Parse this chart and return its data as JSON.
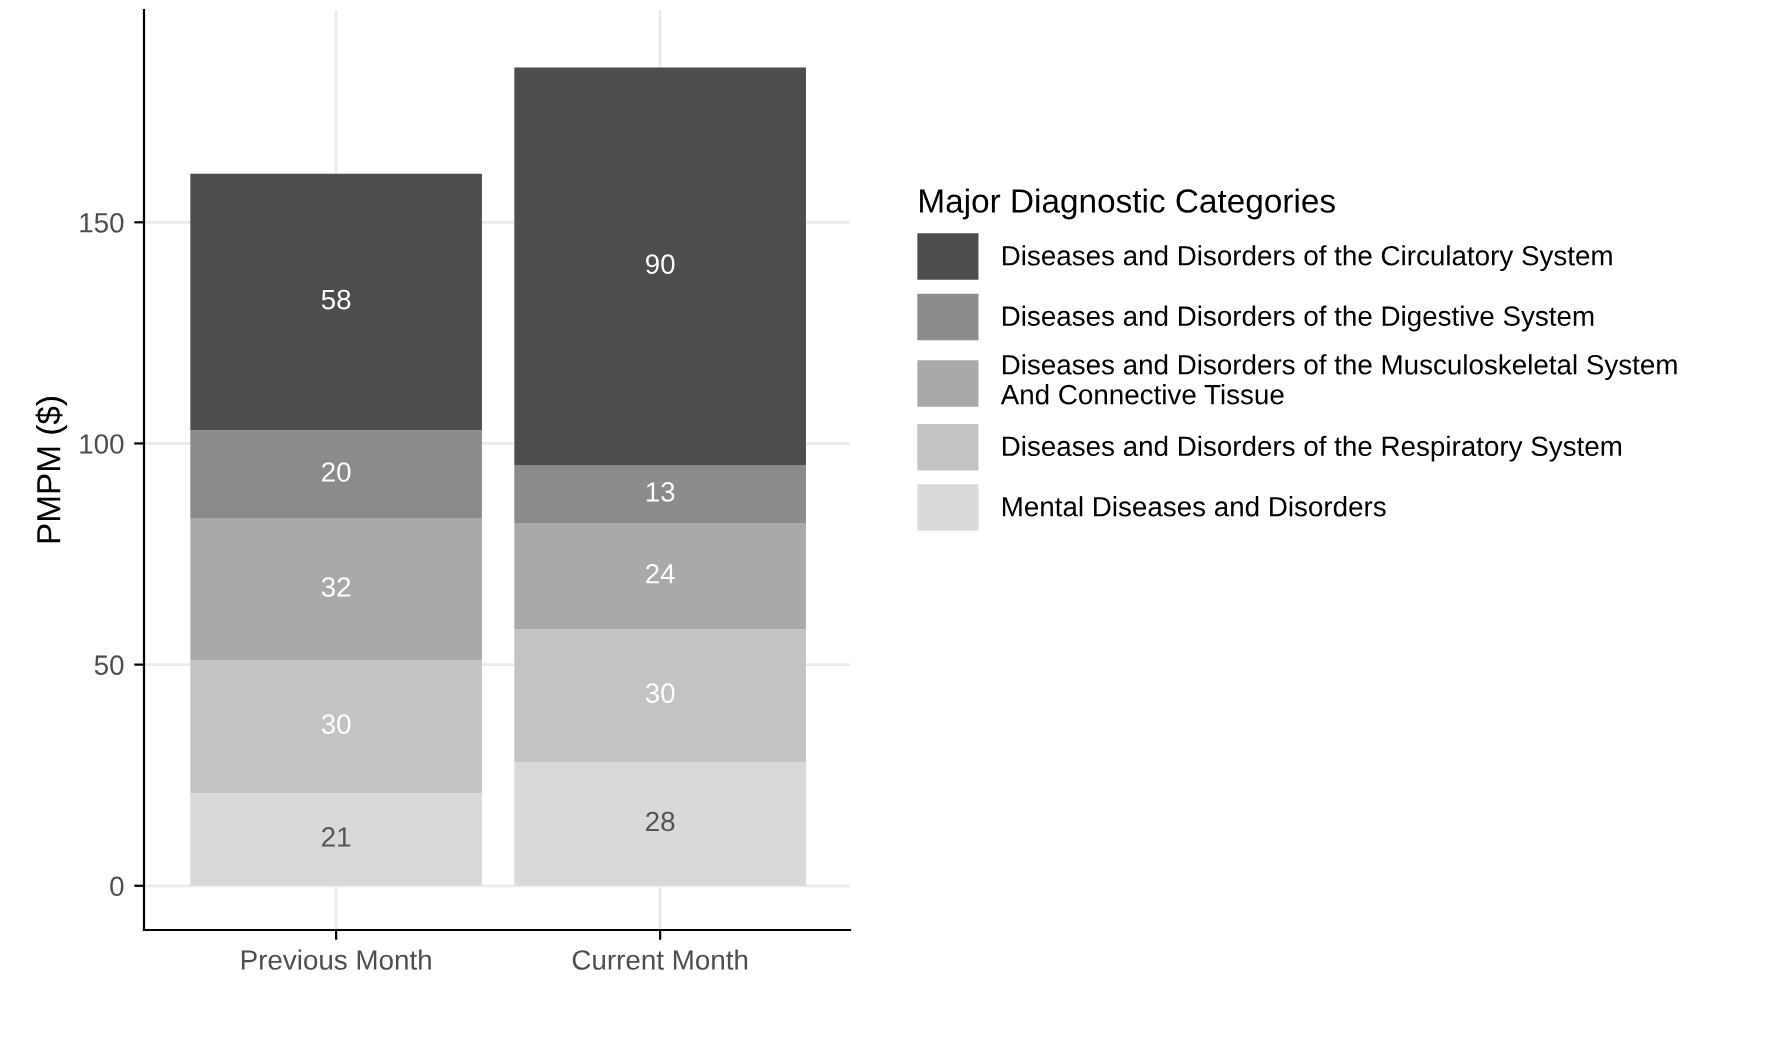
{
  "chart_data": {
    "type": "bar",
    "stacked": true,
    "ylabel": "PMPM ($)",
    "legend_title": "Major Diagnostic Categories",
    "categories": [
      "Previous Month",
      "Current Month"
    ],
    "series": [
      {
        "name": "Mental Diseases and Disorders",
        "color": "#d9d9d9",
        "values": [
          21,
          28
        ]
      },
      {
        "name": "Diseases and Disorders of the Respiratory System",
        "color": "#c3c3c3",
        "values": [
          30,
          30
        ]
      },
      {
        "name": "Diseases and Disorders of the Musculoskeletal System\nAnd Connective Tissue",
        "color": "#a9a9a9",
        "values": [
          32,
          24
        ]
      },
      {
        "name": "Diseases and Disorders of the Digestive System",
        "color": "#8b8b8b",
        "values": [
          20,
          13
        ]
      },
      {
        "name": "Diseases and Disorders of the Circulatory System",
        "color": "#4d4d4d",
        "values": [
          58,
          90
        ]
      }
    ],
    "ylim": [
      -10,
      198
    ],
    "yticks": [
      0,
      50,
      100,
      150
    ],
    "grid": true,
    "legend": "right",
    "data_labels": true
  }
}
